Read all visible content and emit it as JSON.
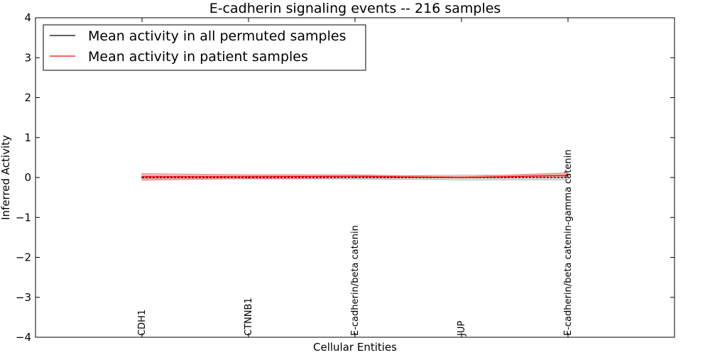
{
  "chart_data": {
    "type": "line",
    "title": "E-cadherin signaling events -- 216 samples",
    "xlabel": "Cellular Entities",
    "ylabel": "Inferred Activity",
    "ylim": [
      -4,
      4
    ],
    "yticks": [
      {
        "value": 4,
        "label": "4"
      },
      {
        "value": 3,
        "label": "3"
      },
      {
        "value": 2,
        "label": "2"
      },
      {
        "value": 1,
        "label": "1"
      },
      {
        "value": 0,
        "label": "0"
      },
      {
        "value": -1,
        "label": "−1"
      },
      {
        "value": -2,
        "label": "−2"
      },
      {
        "value": -3,
        "label": "−3"
      },
      {
        "value": -4,
        "label": "−4"
      }
    ],
    "categories": [
      "CDH1",
      "CTNNB1",
      "E-cadherin/beta catenin",
      "JUP",
      "E-cadherin/beta catenin-gamma catenin"
    ],
    "grid": false,
    "legend_position": "top-left",
    "series": [
      {
        "name": "Mean activity in all permuted samples",
        "color": "#000000",
        "band_color": "#b0b0b0",
        "style": "dashed",
        "values": [
          0.0,
          0.0,
          0.0,
          0.0,
          0.0
        ],
        "lower": [
          -0.03,
          -0.04,
          -0.04,
          -0.06,
          -0.06
        ],
        "upper": [
          0.03,
          0.04,
          0.04,
          0.06,
          0.06
        ]
      },
      {
        "name": "Mean activity in patient samples",
        "color": "#ff0000",
        "band_color": "#f08080",
        "style": "solid",
        "values": [
          0.02,
          0.02,
          0.03,
          0.0,
          0.05
        ],
        "lower": [
          -0.07,
          -0.03,
          -0.01,
          -0.01,
          0.0
        ],
        "upper": [
          0.1,
          0.07,
          0.07,
          0.02,
          0.12
        ]
      }
    ]
  }
}
